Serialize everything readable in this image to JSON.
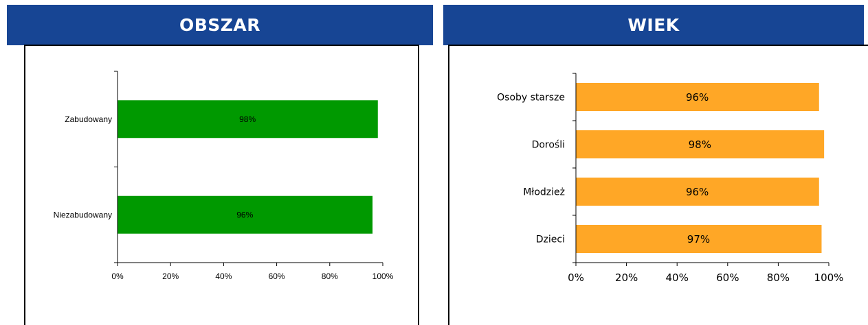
{
  "headers": {
    "left": "OBSZAR",
    "right": "WIEK"
  },
  "colors": {
    "header_bg": "#174594",
    "bar_left": "#009900",
    "bar_right": "#FFA726"
  },
  "chart_data": [
    {
      "type": "bar",
      "orientation": "horizontal",
      "categories": [
        "Zabudowany",
        "Niezabudowany"
      ],
      "values": [
        98,
        96
      ],
      "data_labels": [
        "98%",
        "96%"
      ],
      "xlim": [
        0,
        100
      ],
      "xticks": [
        "0%",
        "20%",
        "40%",
        "60%",
        "80%",
        "100%"
      ],
      "grid": false
    },
    {
      "type": "bar",
      "orientation": "horizontal",
      "categories": [
        "Osoby starsze",
        "Dorośli",
        "Młodzież",
        "Dzieci"
      ],
      "values": [
        96,
        98,
        96,
        97
      ],
      "data_labels": [
        "96%",
        "98%",
        "96%",
        "97%"
      ],
      "xlim": [
        0,
        100
      ],
      "xticks": [
        "0%",
        "20%",
        "40%",
        "60%",
        "80%",
        "100%"
      ],
      "grid": false
    }
  ]
}
